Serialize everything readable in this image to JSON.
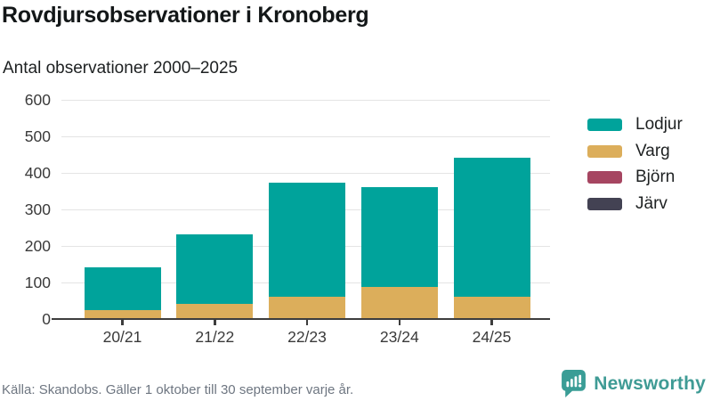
{
  "header": {
    "title": "Rovdjursobservationer i Kronoberg",
    "subtitle": "Antal observationer 2000–2025"
  },
  "chart_data": {
    "type": "bar",
    "stacked": true,
    "title": "Rovdjursobservationer i Kronoberg",
    "subtitle": "Antal observationer 2000–2025",
    "categories": [
      "20/21",
      "21/22",
      "22/23",
      "23/24",
      "24/25"
    ],
    "series": [
      {
        "name": "Lodjur",
        "color": "#00a39b",
        "values": [
          117,
          191,
          312,
          272,
          380
        ]
      },
      {
        "name": "Varg",
        "color": "#dcae5b",
        "values": [
          25,
          42,
          62,
          88,
          62
        ]
      },
      {
        "name": "Björn",
        "color": "#a64561",
        "values": [
          0,
          0,
          0,
          0,
          0
        ]
      },
      {
        "name": "Järv",
        "color": "#434253",
        "values": [
          0,
          0,
          0,
          0,
          0
        ]
      }
    ],
    "stack_totals": [
      142,
      233,
      374,
      360,
      442
    ],
    "xlabel": "",
    "ylabel": "",
    "ylim": [
      0,
      600
    ],
    "yticks": [
      0,
      100,
      200,
      300,
      400,
      500,
      600
    ],
    "grid": true,
    "legend_position": "right"
  },
  "footer": {
    "source": "Källa: Skandobs. Gäller 1 oktober till 30 september varje år."
  },
  "branding": {
    "name": "Newsworthy",
    "color": "#3f9b95"
  }
}
